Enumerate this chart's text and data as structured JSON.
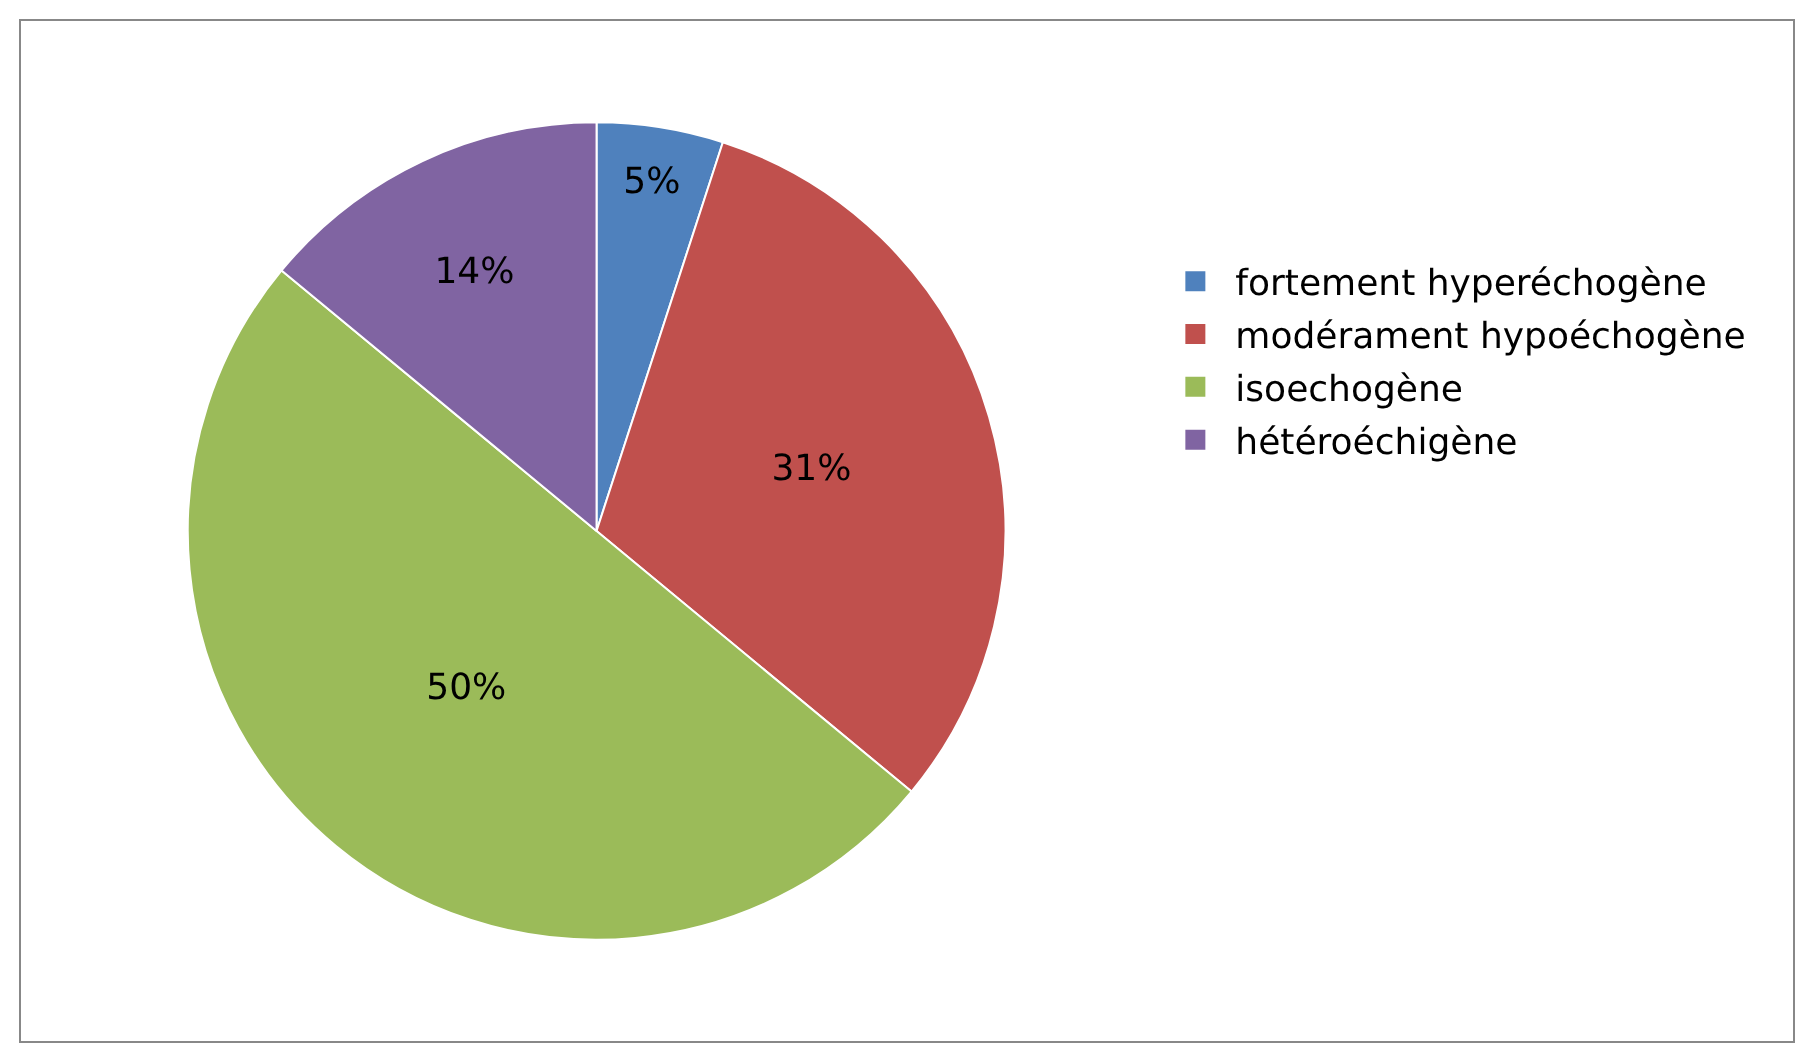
{
  "chart_data": {
    "type": "pie",
    "categories": [
      "fortement hyperéchogène",
      "modérament hypoéchogène",
      "isoechogène",
      "hétéroéchigène"
    ],
    "values": [
      5,
      31,
      50,
      14
    ],
    "colors": [
      "#4f81bd",
      "#c0504d",
      "#9bbb59",
      "#8064a2"
    ],
    "value_labels": [
      "5%",
      "31%",
      "50%",
      "14%"
    ],
    "legend": "right"
  }
}
